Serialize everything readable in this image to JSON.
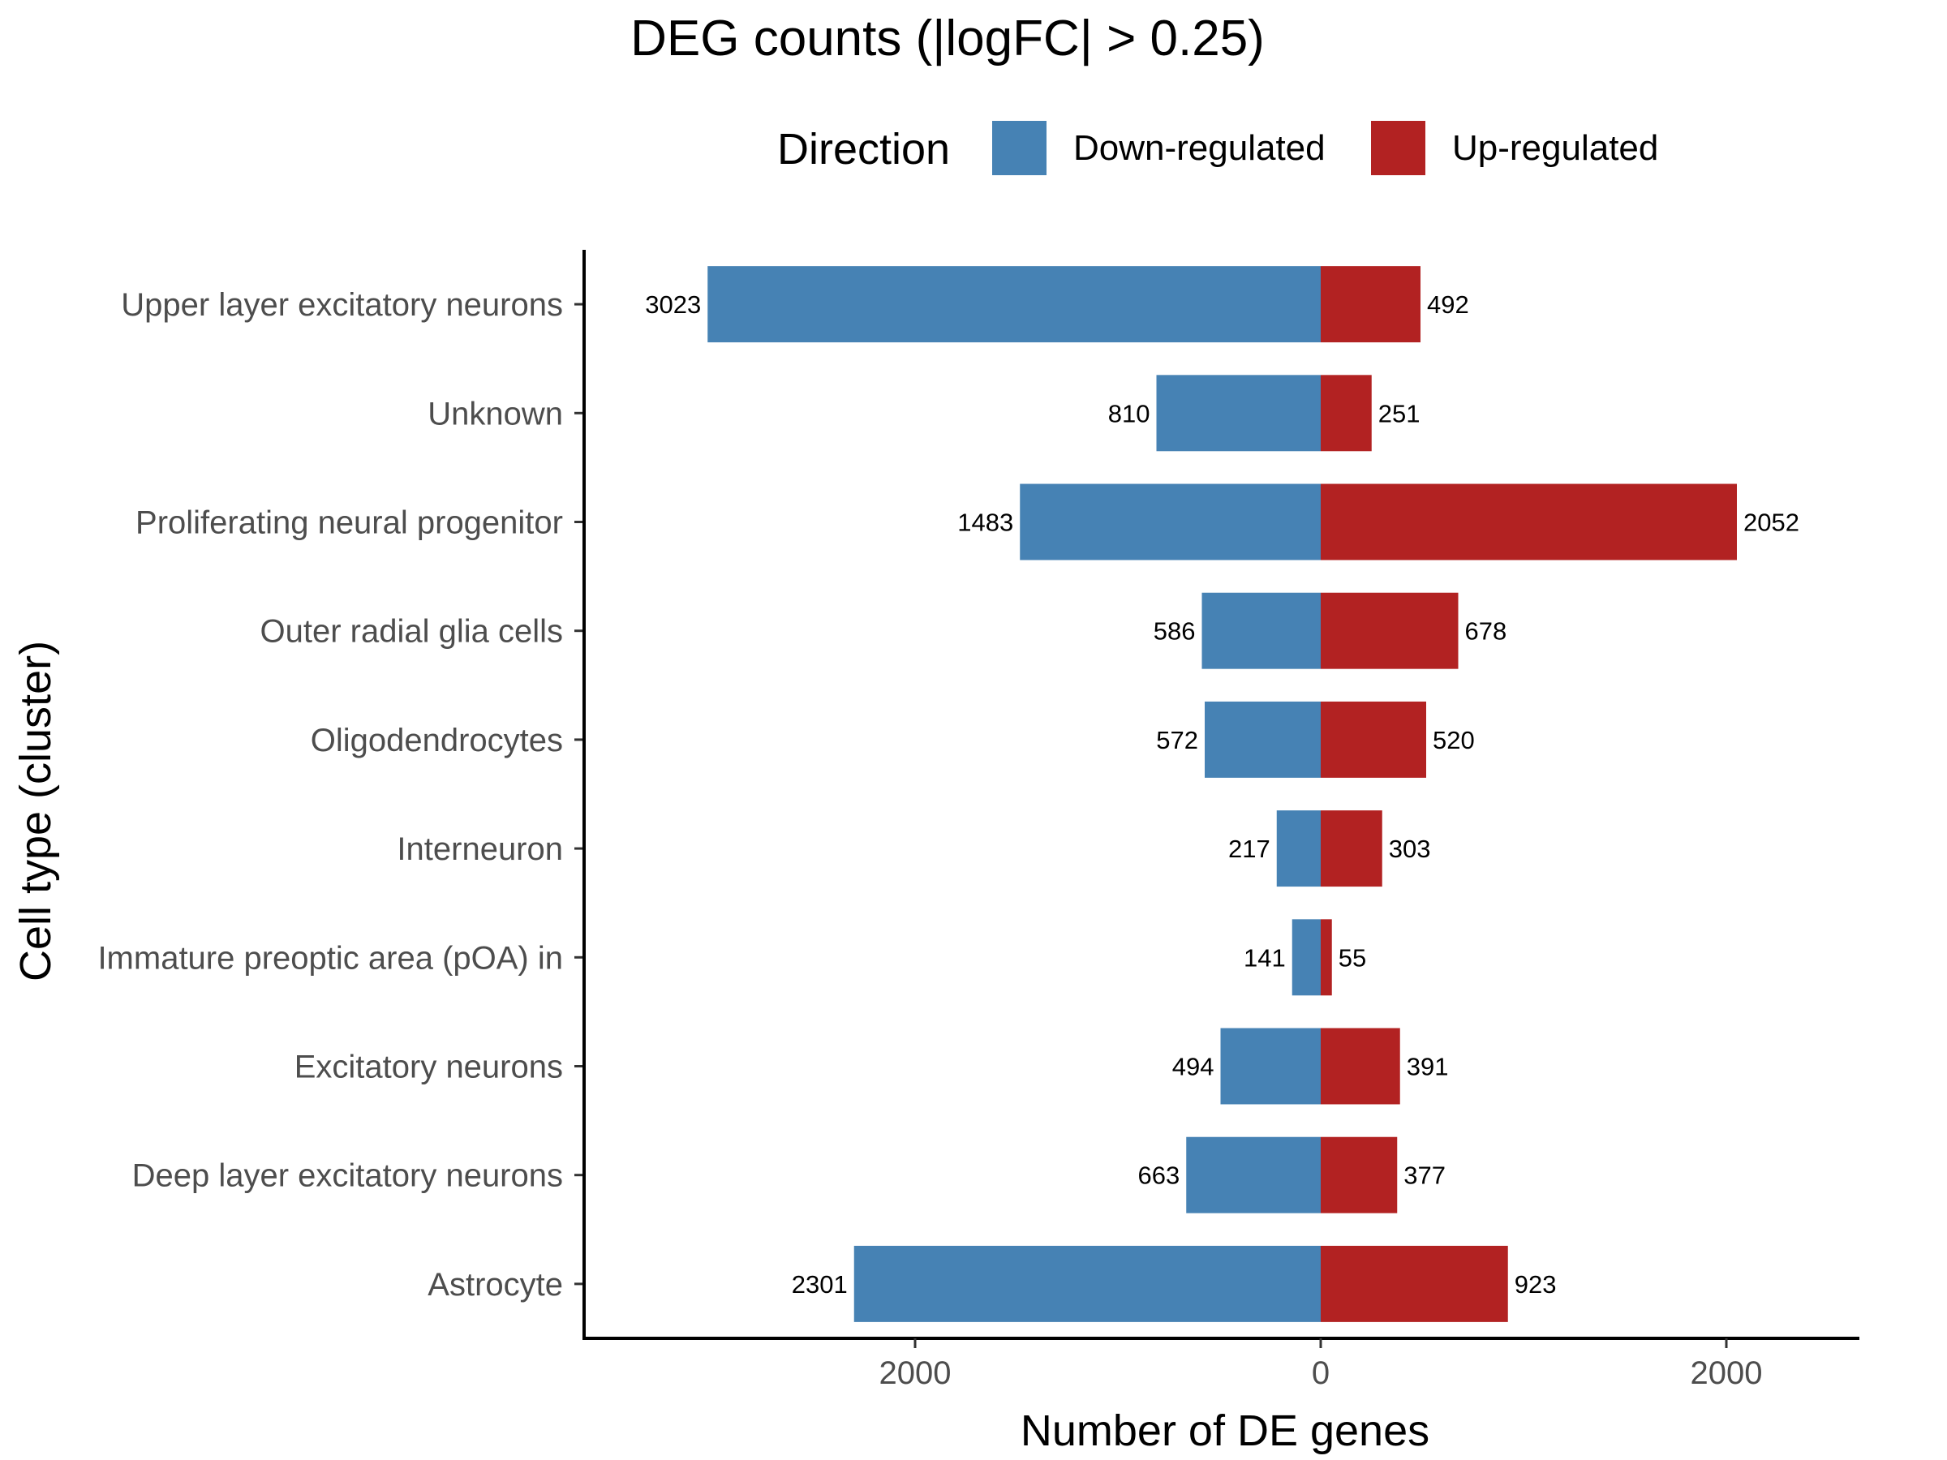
{
  "chart_data": {
    "type": "bar",
    "orientation": "horizontal-diverging",
    "title": "DEG counts (|logFC| > 0.25)",
    "xlabel": "Number of DE genes",
    "ylabel": "Cell type (cluster)",
    "legend": {
      "title": "Direction",
      "placement": "top",
      "entries": [
        {
          "name": "Down-regulated",
          "color": "#4682B4"
        },
        {
          "name": "Up-regulated",
          "color": "#B22222"
        }
      ]
    },
    "categories": [
      "Upper layer excitatory neurons",
      "Unknown",
      "Proliferating neural progenitor",
      "Outer radial glia cells",
      "Oligodendrocytes",
      "Interneuron",
      "Immature preoptic area (pOA) in",
      "Excitatory neurons",
      "Deep layer excitatory neurons",
      "Astrocyte"
    ],
    "series": [
      {
        "name": "Down-regulated",
        "color": "#4682B4",
        "values": [
          3023,
          810,
          1483,
          586,
          572,
          217,
          141,
          494,
          663,
          2301
        ]
      },
      {
        "name": "Up-regulated",
        "color": "#B22222",
        "values": [
          492,
          251,
          2052,
          678,
          520,
          303,
          55,
          391,
          377,
          923
        ]
      }
    ],
    "xlim": [
      -3023,
      2635
    ],
    "xticks": [
      -2000,
      0,
      2000
    ],
    "xtick_labels": [
      "2000",
      "0",
      "2000"
    ],
    "grid": false
  }
}
